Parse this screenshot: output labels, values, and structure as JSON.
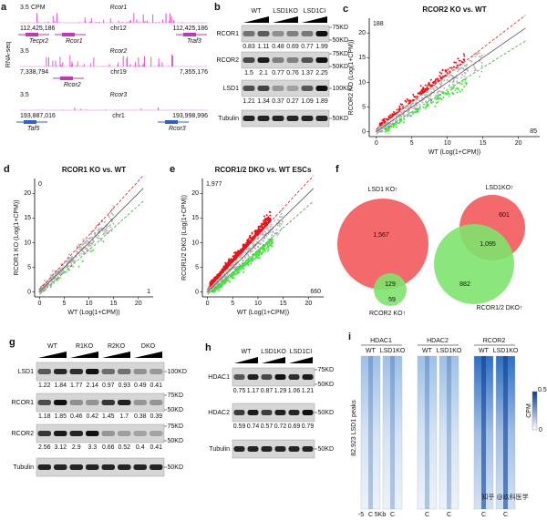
{
  "a": {
    "letter": "a",
    "side_label": "RNA-seq",
    "tracks": [
      {
        "scale": "3.5",
        "unit": "CPM",
        "gene": "Rcor1",
        "start": "112,425,186",
        "chrom": "chr12",
        "end": "112,425,186",
        "genes": [
          "Tecpr2",
          "Rcor1",
          "Traf3"
        ],
        "color": "#c236b8"
      },
      {
        "scale": "3.5",
        "gene": "Rcor2",
        "start": "7,338,794",
        "chrom": "chr19",
        "end": "7,355,176",
        "genes": [
          "Rcor2"
        ],
        "color": "#c236b8"
      },
      {
        "scale": "3.5",
        "gene": "Rcor3",
        "start": "193,887,016",
        "chrom": "chr1",
        "end": "193,998,996",
        "genes": [
          "Taf5",
          "Rcor3"
        ],
        "color": "#2f5fd0"
      }
    ]
  },
  "b": {
    "letter": "b",
    "groups": [
      "WT",
      "LSD1KO",
      "LSD1CI"
    ],
    "rows": [
      {
        "name": "RCOR1",
        "values": [
          0.83,
          1.11,
          0.48,
          0.69,
          0.77,
          1.99
        ],
        "markers": [
          "75KD",
          "50KD"
        ]
      },
      {
        "name": "RCOR2",
        "values": [
          1.5,
          2.1,
          0.77,
          0.76,
          1.37,
          2.25
        ],
        "markers": [
          "75KD",
          "50KD"
        ]
      },
      {
        "name": "LSD1",
        "values": [
          1.21,
          1.34,
          0.37,
          0.27,
          1.09,
          1.89
        ],
        "markers": [
          "100KD"
        ]
      },
      {
        "name": "Tubulin",
        "markers": [
          "50KD"
        ]
      }
    ]
  },
  "c": {
    "letter": "c",
    "title": "RCOR2 KO vs. WT",
    "up_count": 188,
    "down_count": 85,
    "xlabel": "WT (Log(1+CPM))",
    "ylabel": "RCOR2 KO (Log(1+CPM))",
    "xlim": [
      -1,
      23
    ],
    "ylim": [
      -1,
      23
    ],
    "xticks": [
      0,
      5,
      10,
      15,
      20
    ],
    "yticks": [
      0,
      5,
      10,
      15,
      20
    ]
  },
  "d": {
    "letter": "d",
    "title": "RCOR1 KO vs. WT",
    "up_count": 0,
    "down_count": 1,
    "xlabel": "WT (Log(1+CPM))",
    "ylabel": "RCOR1 KO (Log(1+CPM))",
    "xlim": [
      -1,
      23
    ],
    "ylim": [
      -1,
      23
    ],
    "xticks": [
      0,
      5,
      10,
      15,
      20
    ],
    "yticks": [
      0,
      5,
      10,
      15,
      20
    ]
  },
  "e": {
    "letter": "e",
    "title": "RCOR1/2 DKO vs. WT ESCs",
    "up_count": "1,977",
    "down_count": 660,
    "xlabel": "WT (Log(1+CPM))",
    "ylabel": "RCOR1/2 DKO (Log(1+CPM))",
    "xlim": [
      -1,
      23
    ],
    "ylim": [
      -1,
      23
    ],
    "xticks": [
      0,
      5,
      10,
      15,
      20
    ],
    "yticks": [
      0,
      5,
      10,
      15,
      20
    ]
  },
  "f": {
    "letter": "f",
    "left": {
      "a_label": "LSD1 KO↑",
      "a_only": "1,567",
      "both": "129",
      "b_only": "59",
      "b_label": "RCOR2 KO↑"
    },
    "right": {
      "a_label": "LSD1KO↑",
      "a_only": "601",
      "both": "1,095",
      "b_only": "882",
      "b_label": "RCOR1/2 DKO↑"
    }
  },
  "g": {
    "letter": "g",
    "groups": [
      "WT",
      "R1KO",
      "R2KO",
      "DKO"
    ],
    "rows": [
      {
        "name": "LSD1",
        "values": [
          1.22,
          1.84,
          1.77,
          2.14,
          0.97,
          0.93,
          0.49,
          0.41
        ],
        "markers": [
          "100KD"
        ]
      },
      {
        "name": "RCOR1",
        "values": [
          1.18,
          1.85,
          0.46,
          0.42,
          1.45,
          1.7,
          0.38,
          0.39
        ],
        "markers": [
          "75KD",
          "50KD"
        ]
      },
      {
        "name": "RCOR2",
        "values": [
          2.56,
          3.12,
          2.9,
          3.3,
          0.66,
          0.52,
          0.4,
          0.41
        ],
        "markers": [
          "75KD",
          "50KD"
        ]
      },
      {
        "name": "Tubulin",
        "markers": [
          "50KD"
        ]
      }
    ]
  },
  "h": {
    "letter": "h",
    "groups": [
      "WT",
      "LSD1KO",
      "LSD1CI"
    ],
    "rows": [
      {
        "name": "HDAC1",
        "values": [
          0.75,
          1.17,
          0.87,
          1.29,
          1.06,
          1.21
        ],
        "markers": [
          "75KD",
          "50KD"
        ]
      },
      {
        "name": "HDAC2",
        "values": [
          0.59,
          0.74,
          0.57,
          0.72,
          0.69,
          0.79
        ],
        "markers": [
          "50KD"
        ]
      },
      {
        "name": "Tubulin",
        "markers": [
          "50KD"
        ]
      }
    ]
  },
  "i": {
    "letter": "i",
    "groups": [
      {
        "name": "HDAC1",
        "samples": [
          "WT",
          "LSD1KO"
        ],
        "color": "#9fc0e6"
      },
      {
        "name": "HDAC2",
        "samples": [
          "WT",
          "LSD1KO"
        ],
        "color": "#9fc0e6"
      },
      {
        "name": "RCOR2",
        "samples": [
          "WT",
          "LSD1KO"
        ],
        "color": "#2f6fc4"
      }
    ],
    "side_label": "82,923 LSD1 peaks",
    "colorbar": {
      "max": 0.5,
      "min": 0,
      "unit": "CPM"
    },
    "first_column_ticks": [
      "-5",
      "C",
      "5Kb"
    ],
    "other_column_tick": "C",
    "watermark": "知乎 @玖科医学"
  }
}
